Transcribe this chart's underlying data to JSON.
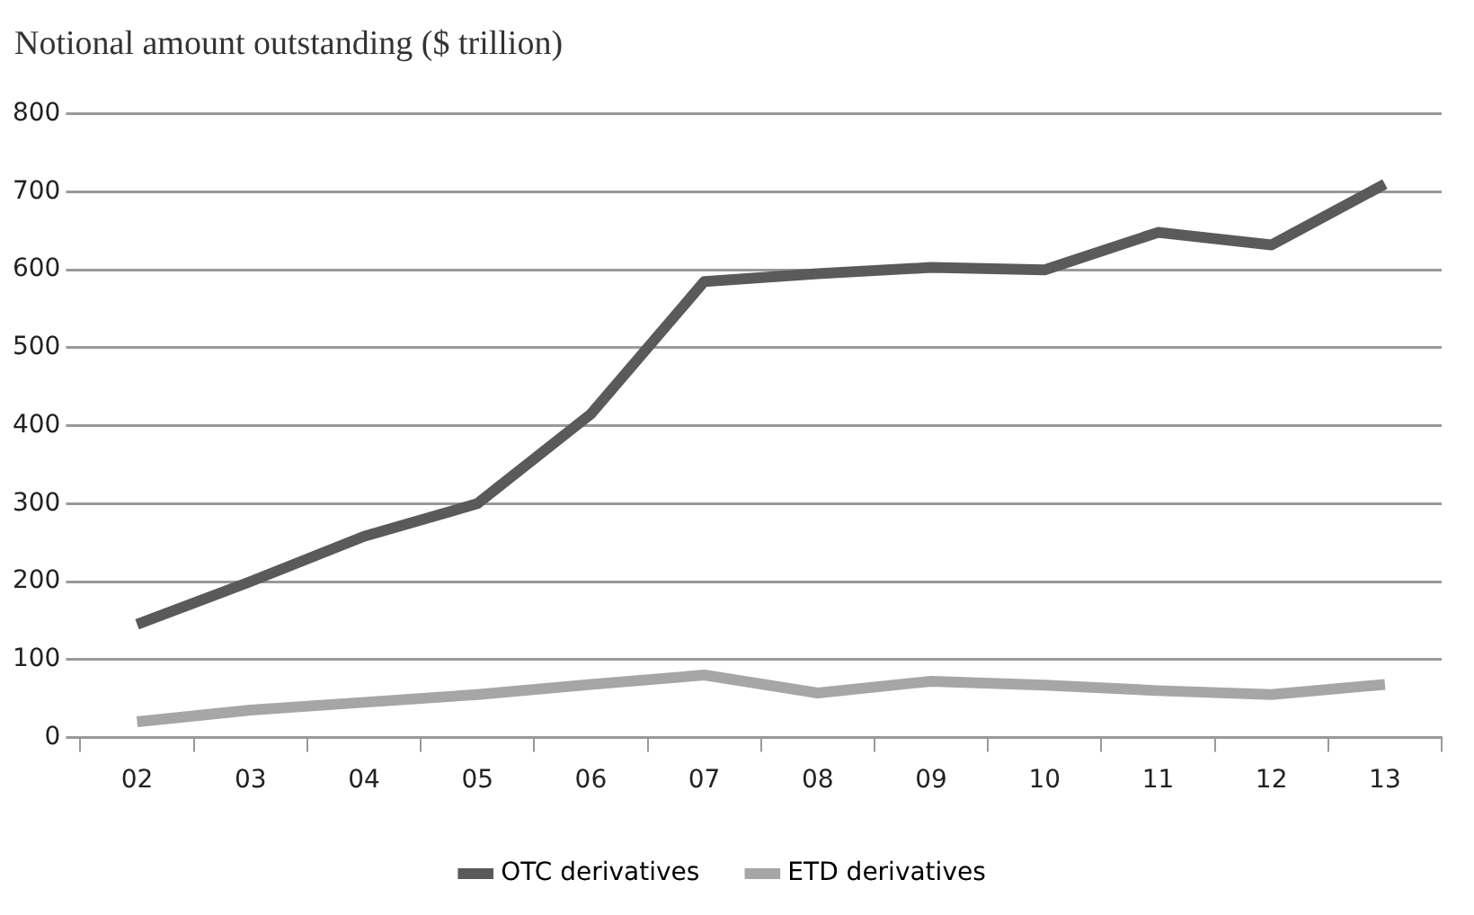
{
  "chart_data": {
    "type": "line",
    "title": "Notional amount outstanding ($ trillion)",
    "categories": [
      "02",
      "03",
      "04",
      "05",
      "06",
      "07",
      "08",
      "09",
      "10",
      "11",
      "12",
      "13"
    ],
    "series": [
      {
        "name": "OTC derivatives",
        "color": "#5a5a5a",
        "values": [
          145,
          200,
          258,
          300,
          415,
          585,
          595,
          603,
          600,
          648,
          632,
          710
        ]
      },
      {
        "name": "ETD derivatives",
        "color": "#a6a6a6",
        "values": [
          20,
          35,
          45,
          55,
          68,
          80,
          57,
          72,
          67,
          60,
          55,
          68
        ]
      }
    ],
    "ylim": [
      0,
      800
    ],
    "yticks": [
      0,
      100,
      200,
      300,
      400,
      500,
      600,
      700,
      800
    ],
    "grid": "y",
    "legend": "bottom",
    "marker": "none",
    "line_style": "solid"
  }
}
